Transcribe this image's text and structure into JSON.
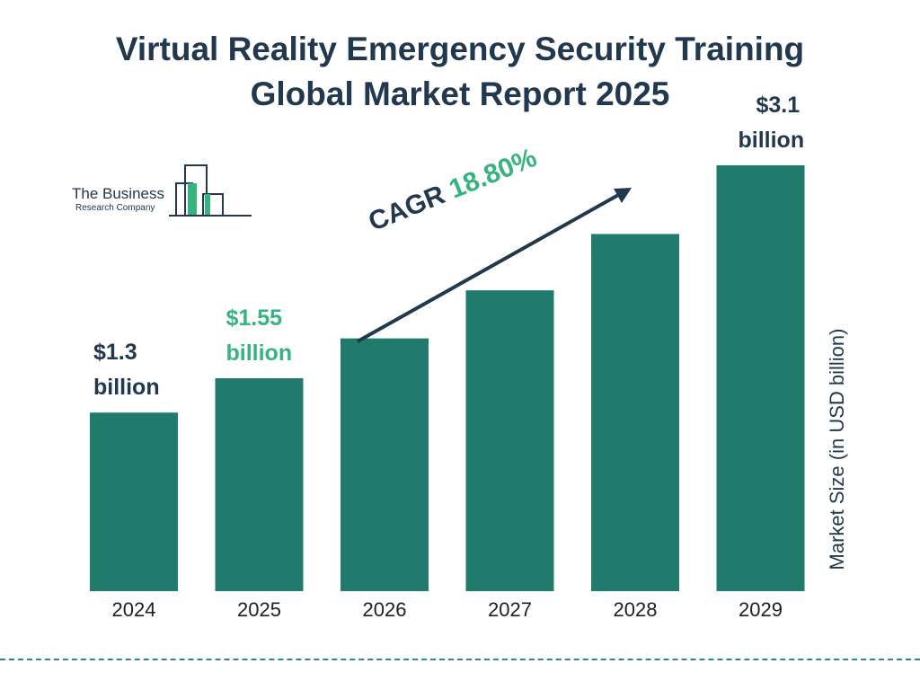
{
  "title_line1": "Virtual Reality Emergency Security Training",
  "title_line2": "Global Market Report 2025",
  "logo": {
    "line1": "The Business",
    "line2": "Research Company"
  },
  "cagr": {
    "label": "CAGR",
    "value": "18.80%"
  },
  "colors": {
    "bar": "#217b6c",
    "accent": "#36b37e",
    "dark": "#22384f"
  },
  "chart_data": {
    "type": "bar",
    "categories": [
      "2024",
      "2025",
      "2026",
      "2027",
      "2028",
      "2029"
    ],
    "values": [
      1.3,
      1.55,
      1.84,
      2.19,
      2.6,
      3.1
    ],
    "ylabel": "Market Size (in USD billion)",
    "labels": [
      {
        "index": 0,
        "line1": "$1.3",
        "line2": "billion"
      },
      {
        "index": 1,
        "line1": "$1.55",
        "line2": "billion"
      },
      {
        "index": 5,
        "line1": "$3.1",
        "line2": "billion"
      }
    ],
    "ylim": [
      0,
      3.1
    ]
  }
}
